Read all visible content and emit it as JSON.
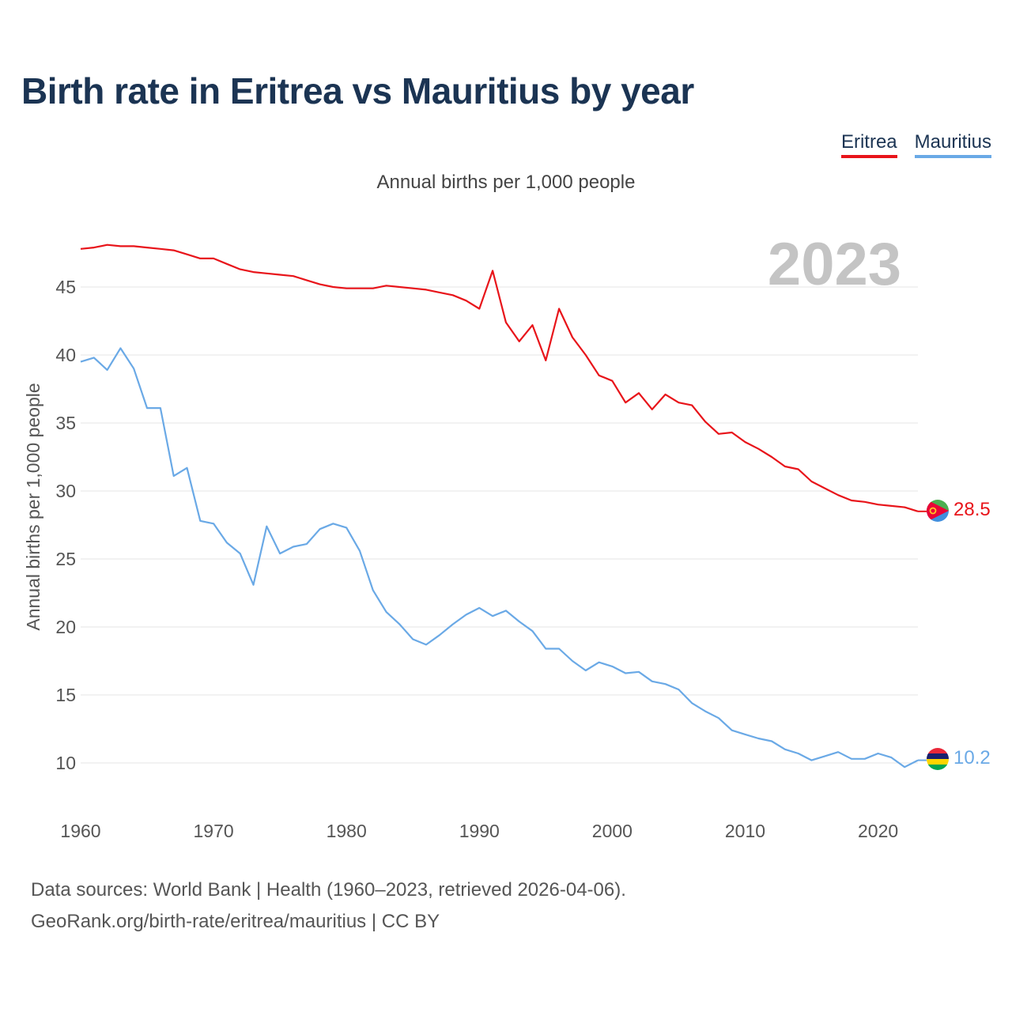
{
  "title": "Birth rate in Eritrea vs Mauritius by year",
  "subtitle": "Annual births per 1,000 people",
  "year_label": "2023",
  "footer": {
    "line1": "Data sources: World Bank | Health (1960–2023, retrieved 2026-04-06).",
    "line2": "GeoRank.org/birth-rate/eritrea/mauritius | CC BY"
  },
  "colors": {
    "eritrea": "#e8141a",
    "mauritius": "#6aa9e6",
    "title": "#1b3453"
  },
  "chart_data": {
    "type": "line",
    "title": "Birth rate in Eritrea vs Mauritius by year",
    "xlabel": "",
    "ylabel": "Annual births per 1,000 people",
    "xlim": [
      1960,
      2023
    ],
    "ylim": [
      7,
      49
    ],
    "yticks": [
      10,
      15,
      20,
      25,
      30,
      35,
      40,
      45
    ],
    "xticks": [
      1960,
      1970,
      1980,
      1990,
      2000,
      2010,
      2020
    ],
    "grid": true,
    "legend": "top-right",
    "x": [
      1960,
      1961,
      1962,
      1963,
      1964,
      1965,
      1966,
      1967,
      1968,
      1969,
      1970,
      1971,
      1972,
      1973,
      1974,
      1975,
      1976,
      1977,
      1978,
      1979,
      1980,
      1981,
      1982,
      1983,
      1984,
      1985,
      1986,
      1987,
      1988,
      1989,
      1990,
      1991,
      1992,
      1993,
      1994,
      1995,
      1996,
      1997,
      1998,
      1999,
      2000,
      2001,
      2002,
      2003,
      2004,
      2005,
      2006,
      2007,
      2008,
      2009,
      2010,
      2011,
      2012,
      2013,
      2014,
      2015,
      2016,
      2017,
      2018,
      2019,
      2020,
      2021,
      2022,
      2023
    ],
    "series": [
      {
        "name": "Eritrea",
        "color": "#e8141a",
        "end_label": "28.5",
        "values": [
          47.8,
          47.9,
          48.1,
          48.0,
          48.0,
          47.9,
          47.8,
          47.7,
          47.4,
          47.1,
          47.1,
          46.7,
          46.3,
          46.1,
          46.0,
          45.9,
          45.8,
          45.5,
          45.2,
          45.0,
          44.9,
          44.9,
          44.9,
          45.1,
          45.0,
          44.9,
          44.8,
          44.6,
          44.4,
          44.0,
          43.4,
          46.2,
          42.4,
          41.0,
          42.2,
          39.6,
          43.4,
          41.3,
          40.0,
          38.5,
          38.1,
          36.5,
          37.2,
          36.0,
          37.1,
          36.5,
          36.3,
          35.1,
          34.2,
          34.3,
          33.6,
          33.1,
          32.5,
          31.8,
          31.6,
          30.7,
          30.2,
          29.7,
          29.3,
          29.2,
          29.0,
          28.9,
          28.8,
          28.5
        ]
      },
      {
        "name": "Mauritius",
        "color": "#6aa9e6",
        "end_label": "10.2",
        "values": [
          39.5,
          39.8,
          38.9,
          40.5,
          39.0,
          36.1,
          36.1,
          31.1,
          31.7,
          27.8,
          27.6,
          26.2,
          25.4,
          23.1,
          27.4,
          25.4,
          25.9,
          26.1,
          27.2,
          27.6,
          27.3,
          25.6,
          22.7,
          21.1,
          20.2,
          19.1,
          18.7,
          19.4,
          20.2,
          20.9,
          21.4,
          20.8,
          21.2,
          20.4,
          19.7,
          18.4,
          18.4,
          17.5,
          16.8,
          17.4,
          17.1,
          16.6,
          16.7,
          16.0,
          15.8,
          15.4,
          14.4,
          13.8,
          13.3,
          12.4,
          12.1,
          11.8,
          11.6,
          11.0,
          10.7,
          10.2,
          10.5,
          10.8,
          10.3,
          10.3,
          10.7,
          10.4,
          9.7,
          10.2
        ]
      }
    ]
  }
}
